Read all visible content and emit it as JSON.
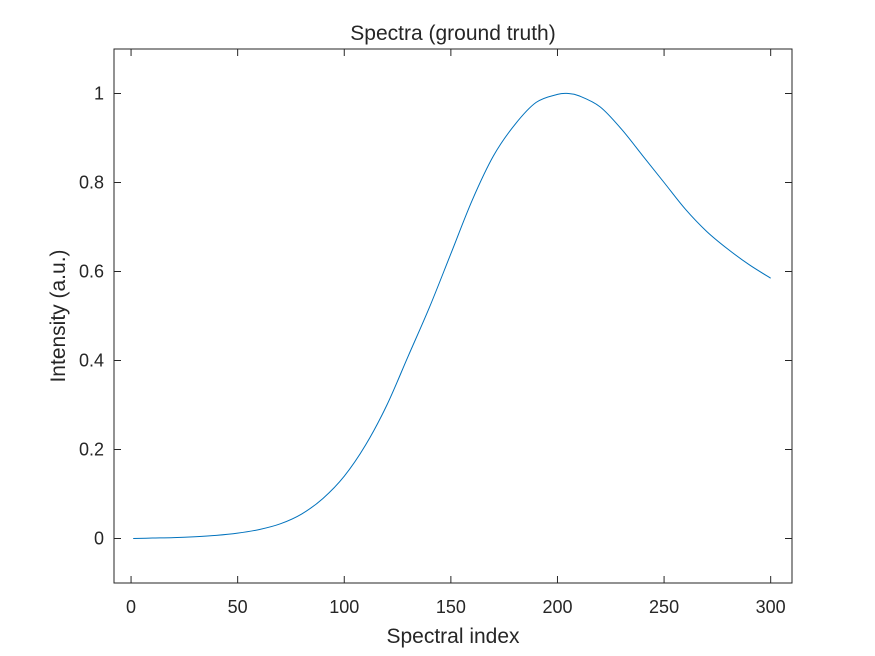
{
  "chart_data": {
    "type": "line",
    "title": "Spectra (ground truth)",
    "xlabel": "Spectral index",
    "ylabel": "Intensity (a.u.)",
    "xlim": [
      -8,
      310
    ],
    "ylim": [
      -0.1,
      1.1
    ],
    "xticks": [
      0,
      50,
      100,
      150,
      200,
      250,
      300
    ],
    "yticks": [
      0,
      0.2,
      0.4,
      0.6,
      0.8,
      1
    ],
    "xtick_labels": [
      "0",
      "50",
      "100",
      "150",
      "200",
      "250",
      "300"
    ],
    "ytick_labels": [
      "0",
      "0.2",
      "0.4",
      "0.6",
      "0.8",
      "1"
    ],
    "grid": false,
    "line_color": "#0072BD",
    "series": [
      {
        "x": [
          1,
          10,
          20,
          30,
          40,
          50,
          60,
          70,
          80,
          90,
          100,
          110,
          120,
          130,
          140,
          150,
          160,
          170,
          180,
          190,
          200,
          205,
          210,
          220,
          230,
          240,
          250,
          260,
          270,
          280,
          290,
          300
        ],
        "y": [
          0.0,
          0.001,
          0.002,
          0.004,
          0.007,
          0.012,
          0.02,
          0.033,
          0.055,
          0.09,
          0.14,
          0.21,
          0.3,
          0.41,
          0.52,
          0.64,
          0.76,
          0.86,
          0.93,
          0.98,
          0.998,
          1.0,
          0.995,
          0.97,
          0.92,
          0.86,
          0.8,
          0.74,
          0.69,
          0.65,
          0.615,
          0.585
        ]
      }
    ]
  }
}
